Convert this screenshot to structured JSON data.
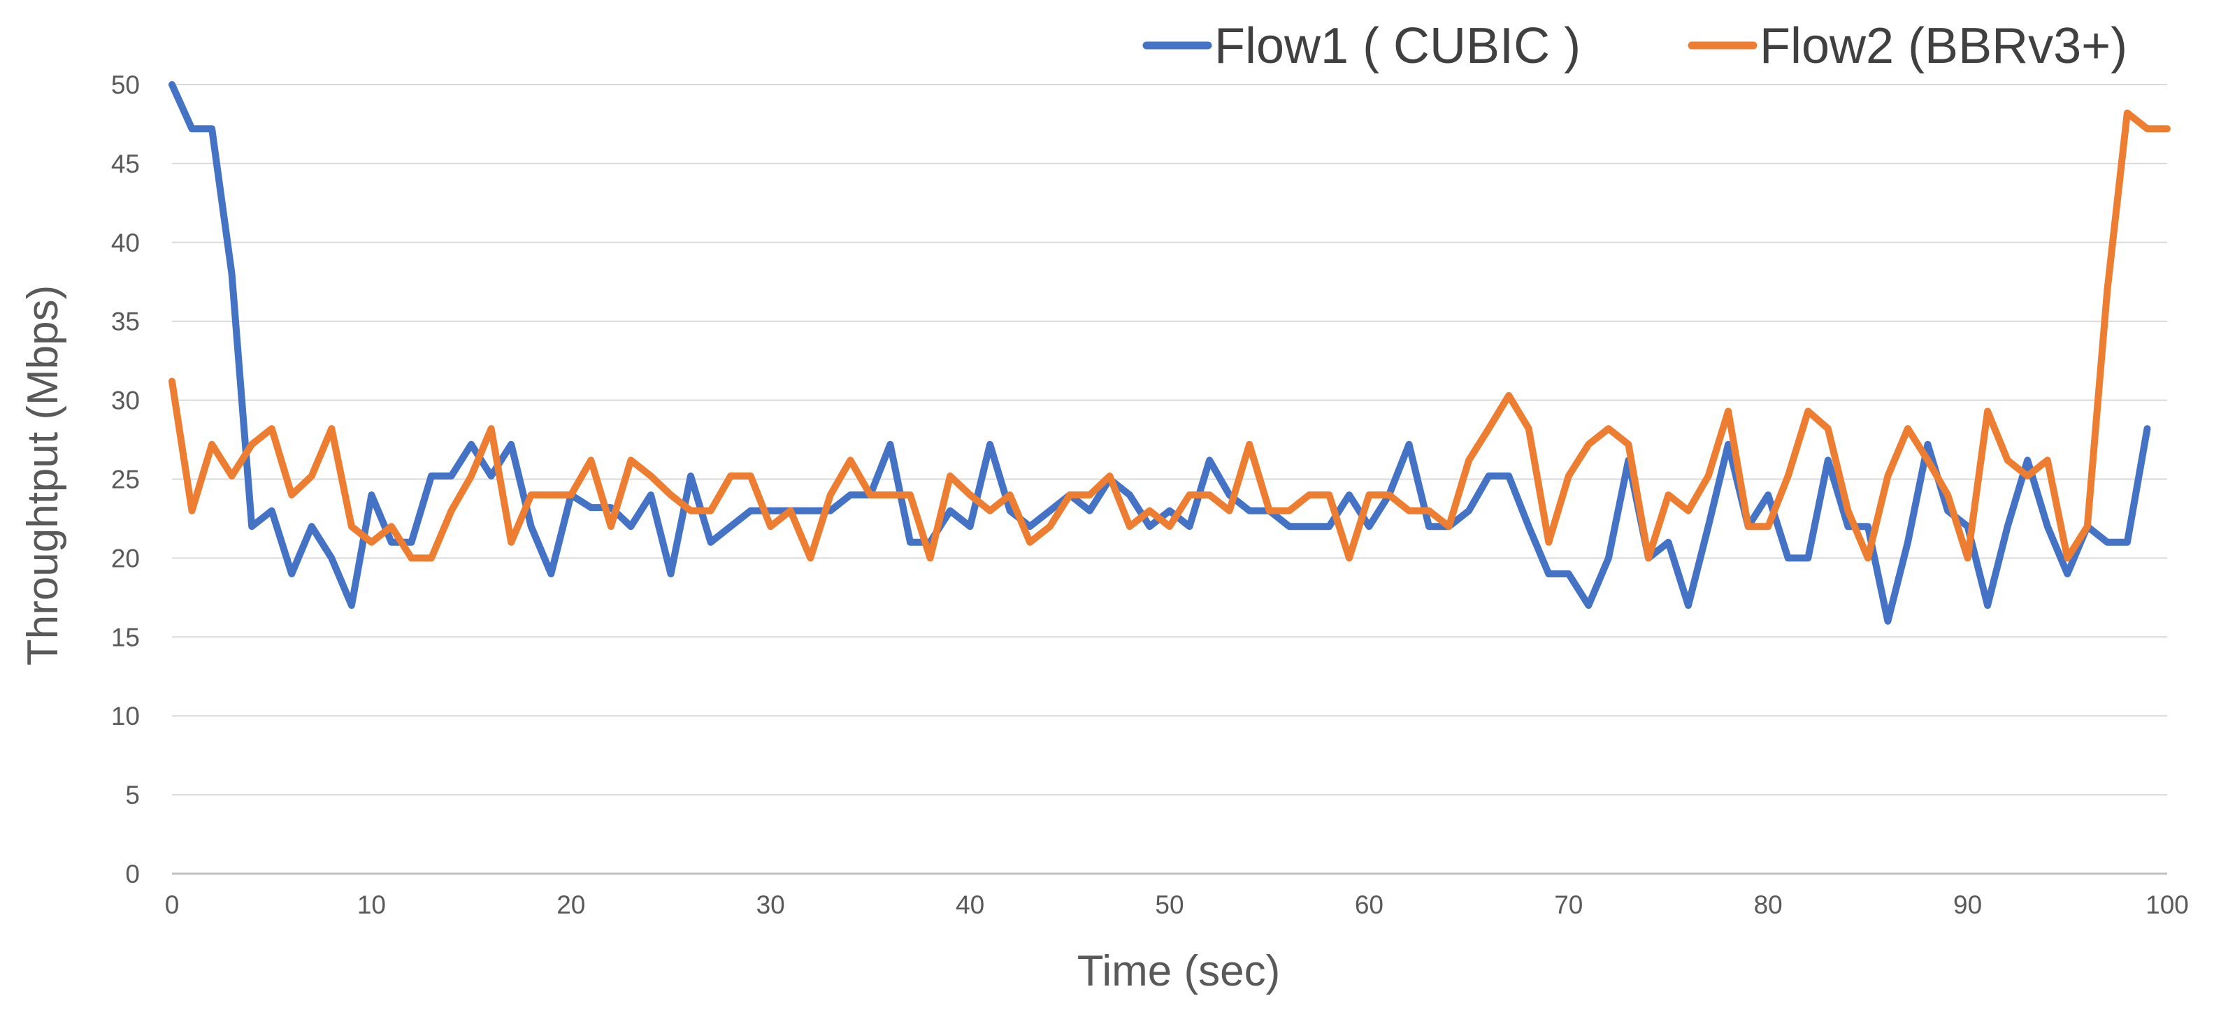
{
  "chart_data": {
    "type": "line",
    "title": "",
    "xlabel": "Time (sec)",
    "ylabel": "Throughtput (Mbps)",
    "xlim": [
      0,
      100
    ],
    "ylim": [
      0,
      50
    ],
    "xticks": [
      0,
      10,
      20,
      30,
      40,
      50,
      60,
      70,
      80,
      90,
      100
    ],
    "yticks": [
      0,
      5,
      10,
      15,
      20,
      25,
      30,
      35,
      40,
      45,
      50
    ],
    "grid": "horizontal",
    "legend": "top-right",
    "series": [
      {
        "name": "Flow1 ( CUBIC )",
        "color": "#4472C4",
        "x": [
          0,
          1,
          2,
          3,
          4,
          5,
          6,
          7,
          8,
          9,
          10,
          11,
          12,
          13,
          14,
          15,
          16,
          17,
          18,
          19,
          20,
          21,
          22,
          23,
          24,
          25,
          26,
          27,
          28,
          29,
          30,
          31,
          32,
          33,
          34,
          35,
          36,
          37,
          38,
          39,
          40,
          41,
          42,
          43,
          44,
          45,
          46,
          47,
          48,
          49,
          50,
          51,
          52,
          53,
          54,
          55,
          56,
          57,
          58,
          59,
          60,
          61,
          62,
          63,
          64,
          65,
          66,
          67,
          68,
          69,
          70,
          71,
          72,
          73,
          74,
          75,
          76,
          77,
          78,
          79,
          80,
          81,
          82,
          83,
          84,
          85,
          86,
          87,
          88,
          89,
          90,
          91,
          92,
          93,
          94,
          95,
          96,
          97,
          98,
          99
        ],
        "values": [
          50,
          47.2,
          47.2,
          38,
          22,
          23,
          19,
          22,
          20,
          17,
          24,
          21,
          21,
          25.2,
          25.2,
          27.2,
          25.2,
          27.2,
          22,
          19,
          24,
          23.2,
          23.2,
          22,
          24,
          19,
          25.2,
          21,
          22,
          23,
          23,
          23,
          23,
          23,
          24,
          24,
          27.2,
          21,
          21,
          23,
          22,
          27.2,
          23,
          22,
          23,
          24,
          23,
          25,
          24,
          22,
          23,
          22,
          26.2,
          24,
          23,
          23,
          22,
          22,
          22,
          24,
          22,
          24,
          27.2,
          22,
          22,
          23,
          25.2,
          25.2,
          22,
          19,
          19,
          17,
          20,
          26.2,
          20,
          21,
          17,
          22,
          27.2,
          22,
          24,
          20,
          20,
          26.2,
          22,
          22,
          16,
          21,
          27.2,
          23,
          22,
          17,
          22,
          26.2,
          22,
          19,
          22,
          21,
          21,
          28.2
        ]
      },
      {
        "name": "Flow2 (BBRv3+)",
        "color": "#ED7D31",
        "x": [
          0,
          1,
          2,
          3,
          4,
          5,
          6,
          7,
          8,
          9,
          10,
          11,
          12,
          13,
          14,
          15,
          16,
          17,
          18,
          19,
          20,
          21,
          22,
          23,
          24,
          25,
          26,
          27,
          28,
          29,
          30,
          31,
          32,
          33,
          34,
          35,
          36,
          37,
          38,
          39,
          40,
          41,
          42,
          43,
          44,
          45,
          46,
          47,
          48,
          49,
          50,
          51,
          52,
          53,
          54,
          55,
          56,
          57,
          58,
          59,
          60,
          61,
          62,
          63,
          64,
          65,
          66,
          67,
          68,
          69,
          70,
          71,
          72,
          73,
          74,
          75,
          76,
          77,
          78,
          79,
          80,
          81,
          82,
          83,
          84,
          85,
          86,
          87,
          88,
          89,
          90,
          91,
          92,
          93,
          94,
          95,
          96,
          97,
          98,
          99,
          100
        ],
        "values": [
          31.2,
          23,
          27.2,
          25.2,
          27.2,
          28.2,
          24,
          25.2,
          28.2,
          22,
          21,
          22,
          20,
          20,
          23,
          25.2,
          28.2,
          21,
          24,
          24,
          24,
          26.2,
          22,
          26.2,
          25.2,
          24,
          23,
          23,
          25.2,
          25.2,
          22,
          23,
          20,
          24,
          26.2,
          24,
          24,
          24,
          20,
          25.2,
          24,
          23,
          24,
          21,
          22,
          24,
          24,
          25.2,
          22,
          23,
          22,
          24,
          24,
          23,
          27.2,
          23,
          23,
          24,
          24,
          20,
          24,
          24,
          23,
          23,
          22,
          26.2,
          28.2,
          30.3,
          28.2,
          21,
          25.2,
          27.2,
          28.2,
          27.2,
          20,
          24,
          23,
          25.2,
          29.3,
          22,
          22,
          25.2,
          29.3,
          28.2,
          23,
          20,
          25.2,
          28.2,
          26.2,
          24,
          20,
          29.3,
          26.2,
          25.2,
          26.2,
          20,
          22,
          37,
          48.2,
          47.2,
          47.2
        ]
      }
    ]
  }
}
